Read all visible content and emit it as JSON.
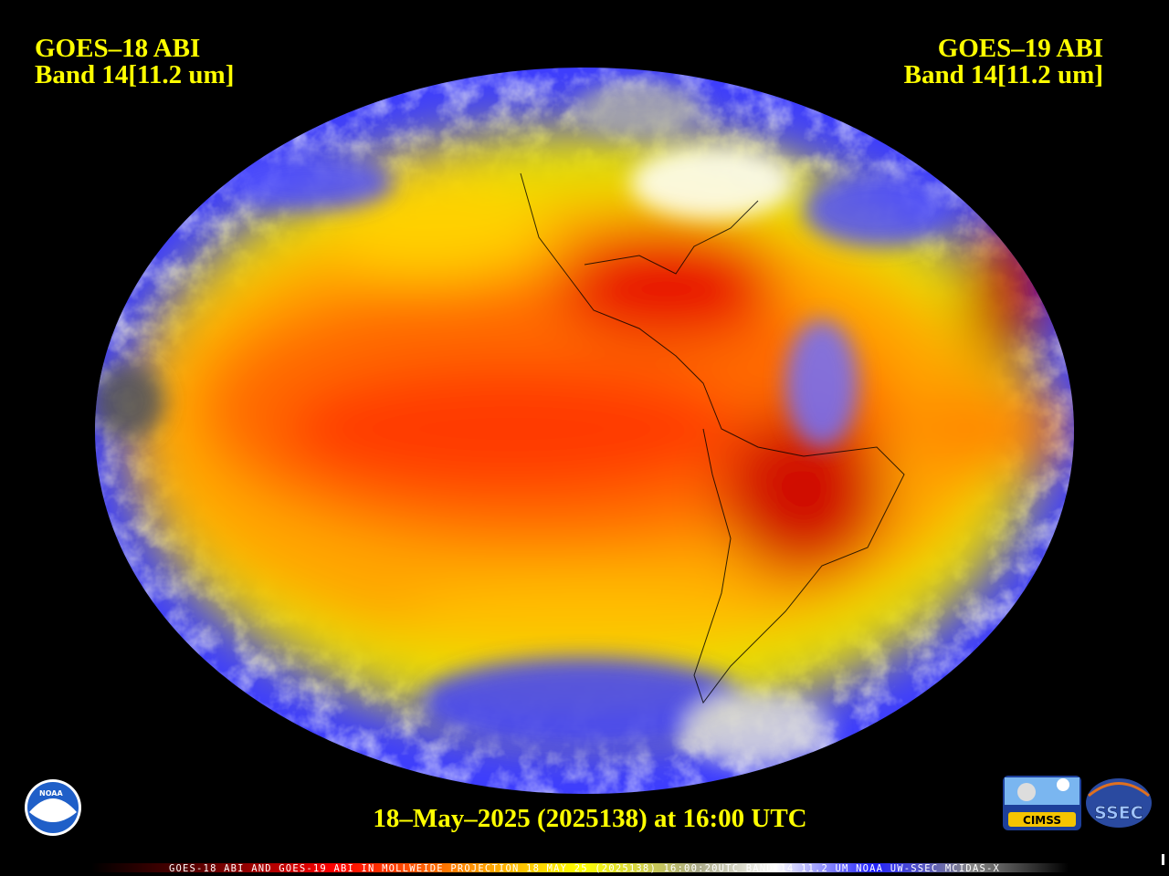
{
  "header": {
    "left": {
      "satellite": "GOES–18 ABI",
      "band": "Band 14[11.2 um]"
    },
    "right": {
      "satellite": "GOES–19 ABI",
      "band": "Band 14[11.2 um]"
    }
  },
  "timestamp": "18–May–2025 (2025138) at 16:00 UTC",
  "caption": "GOES-18 ABI AND GOES-19 ABI IN MOLLWEIDE PROJECTION 18 MAY 25 (2025138) 16:00:20UTC BAND-14 11.2 UM NOAA UW-SSEC MCIDAS-X",
  "logos": {
    "noaa": "NOAA",
    "cimss": "CIMSS",
    "ssec": "SSEC"
  }
}
